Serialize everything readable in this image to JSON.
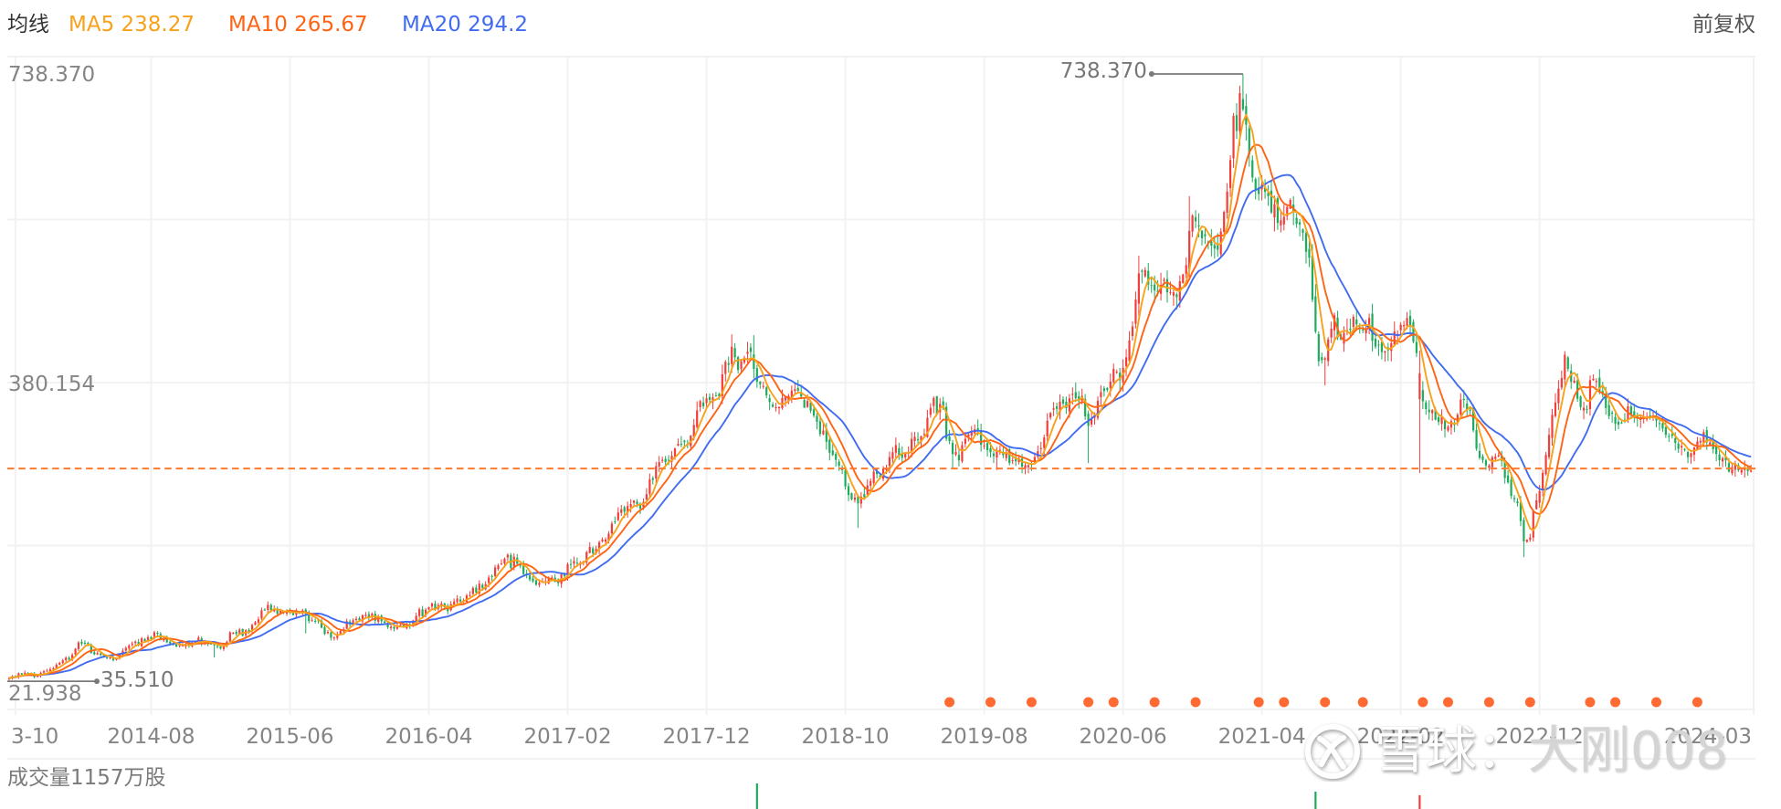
{
  "header": {
    "indicator_title": "均线",
    "adjust_mode": "前复权"
  },
  "watermark": {
    "logo_icon": "xueqiu-logo",
    "site": "雪球",
    "separator": "：",
    "author": "大刚008"
  },
  "chart_data": {
    "type": "candlestick",
    "title": "",
    "interval": "weekly",
    "adjustment": "前复权",
    "candle_count": 553,
    "ylim": [
      21.938,
      738.37
    ],
    "grid": true,
    "legend_position": "top-left",
    "y_axis": {
      "ticks": [
        {
          "label": "738.370",
          "value": 738.37
        },
        {
          "label": "380.154",
          "value": 380.154
        },
        {
          "label": "21.938",
          "value": 21.938
        }
      ]
    },
    "x_ticks": [
      {
        "label": "3-10",
        "index": 2
      },
      {
        "label": "2014-08",
        "index": 45
      },
      {
        "label": "2015-06",
        "index": 89
      },
      {
        "label": "2016-04",
        "index": 133
      },
      {
        "label": "2017-02",
        "index": 177
      },
      {
        "label": "2017-12",
        "index": 221
      },
      {
        "label": "2018-10",
        "index": 265
      },
      {
        "label": "2019-08",
        "index": 309
      },
      {
        "label": "2020-06",
        "index": 353
      },
      {
        "label": "2021-04",
        "index": 397
      },
      {
        "label": "2022-02",
        "index": 441
      },
      {
        "label": "2022-12",
        "index": 485
      },
      {
        "label": "2024-03",
        "index": 552
      }
    ],
    "ma_series": [
      {
        "name": "MA5",
        "period": 5,
        "value": "238.27",
        "color": "#F8A21C"
      },
      {
        "name": "MA10",
        "period": 10,
        "value": "265.67",
        "color": "#FF6414"
      },
      {
        "name": "MA20",
        "period": 20,
        "value": "294.2",
        "color": "#416CF0"
      }
    ],
    "colors": {
      "up": "#F23D3A",
      "down": "#1DAB5C",
      "grid": "#F2F2F2",
      "annotation": "#7A7A7A",
      "price_line": "#FF7A2C",
      "event_marker": "#FF6A33"
    },
    "max_marker": {
      "label": "738.370",
      "value": 738.37,
      "index": 391
    },
    "min_marker": {
      "label": "35.510",
      "value": 35.51,
      "index": 0
    },
    "price_line": {
      "value": 281.8,
      "style": "dashed"
    },
    "close_anchors": [
      [
        0,
        39.7
      ],
      [
        4,
        45.0
      ],
      [
        9,
        41.8
      ],
      [
        14,
        52.4
      ],
      [
        19,
        63.0
      ],
      [
        23,
        82.0
      ],
      [
        26,
        71.4
      ],
      [
        30,
        63.0
      ],
      [
        34,
        59.8
      ],
      [
        37,
        73.5
      ],
      [
        42,
        82.0
      ],
      [
        46,
        89.4
      ],
      [
        51,
        82.0
      ],
      [
        54,
        75.6
      ],
      [
        60,
        84.1
      ],
      [
        64,
        75.6
      ],
      [
        67,
        71.4
      ],
      [
        70,
        89.4
      ],
      [
        75,
        92.5
      ],
      [
        79,
        105.2
      ],
      [
        81,
        123.2
      ],
      [
        85,
        117.9
      ],
      [
        90,
        115.8
      ],
      [
        93,
        113.7
      ],
      [
        97,
        105.2
      ],
      [
        101,
        89.4
      ],
      [
        104,
        89.4
      ],
      [
        108,
        105.2
      ],
      [
        113,
        112.6
      ],
      [
        118,
        108.4
      ],
      [
        121,
        99.9
      ],
      [
        126,
        97.8
      ],
      [
        130,
        113.7
      ],
      [
        135,
        123.2
      ],
      [
        140,
        121.1
      ],
      [
        143,
        131.7
      ],
      [
        148,
        142.2
      ],
      [
        152,
        152.8
      ],
      [
        155,
        172.0
      ],
      [
        158,
        176.1
      ],
      [
        161,
        170.8
      ],
      [
        165,
        158.1
      ],
      [
        170,
        147.0
      ],
      [
        174,
        155.5
      ],
      [
        177,
        165.5
      ],
      [
        181,
        174.0
      ],
      [
        185,
        186.6
      ],
      [
        189,
        200.4
      ],
      [
        191,
        218.3
      ],
      [
        194,
        235.3
      ],
      [
        197,
        239.5
      ],
      [
        200,
        239.5
      ],
      [
        202,
        256.4
      ],
      [
        204,
        274.4
      ],
      [
        206,
        288.1
      ],
      [
        208,
        290.2
      ],
      [
        210,
        298.7
      ],
      [
        212,
        306.1
      ],
      [
        214,
        311.4
      ],
      [
        216,
        319.8
      ],
      [
        218,
        345.2
      ],
      [
        219,
        362.1
      ],
      [
        221,
        358.9
      ],
      [
        223,
        369.5
      ],
      [
        225,
        362.1
      ],
      [
        226,
        383.2
      ],
      [
        227,
        404.4
      ],
      [
        229,
        414.9
      ],
      [
        231,
        393.8
      ],
      [
        232,
        404.4
      ],
      [
        234,
        408.6
      ],
      [
        235,
        414.9
      ],
      [
        237,
        390.6
      ],
      [
        239,
        369.5
      ],
      [
        241,
        362.1
      ],
      [
        243,
        358.9
      ],
      [
        245,
        362.1
      ],
      [
        247,
        372.7
      ],
      [
        249,
        369.5
      ],
      [
        252,
        358.9
      ],
      [
        254,
        348.4
      ],
      [
        256,
        337.8
      ],
      [
        258,
        319.8
      ],
      [
        259,
        309.2
      ],
      [
        261,
        295.5
      ],
      [
        263,
        288.1
      ],
      [
        264,
        274.4
      ],
      [
        266,
        253.2
      ],
      [
        267,
        245.8
      ],
      [
        269,
        245.8
      ],
      [
        271,
        250.0
      ],
      [
        272,
        266.9
      ],
      [
        274,
        274.4
      ],
      [
        275,
        271.2
      ],
      [
        277,
        277.5
      ],
      [
        279,
        292.3
      ],
      [
        281,
        302.9
      ],
      [
        283,
        298.7
      ],
      [
        285,
        304.0
      ],
      [
        287,
        316.6
      ],
      [
        290,
        327.2
      ],
      [
        291,
        337.8
      ],
      [
        293,
        355.7
      ],
      [
        294,
        351.5
      ],
      [
        296,
        348.4
      ],
      [
        297,
        319.8
      ],
      [
        299,
        298.7
      ],
      [
        301,
        295.5
      ],
      [
        303,
        313.5
      ],
      [
        305,
        324.0
      ],
      [
        307,
        324.0
      ],
      [
        309,
        306.1
      ],
      [
        311,
        302.9
      ],
      [
        313,
        298.7
      ],
      [
        315,
        295.5
      ],
      [
        318,
        292.3
      ],
      [
        320,
        288.1
      ],
      [
        322,
        287.0
      ],
      [
        324,
        288.1
      ],
      [
        326,
        295.5
      ],
      [
        328,
        319.8
      ],
      [
        329,
        341.0
      ],
      [
        331,
        348.4
      ],
      [
        333,
        358.9
      ],
      [
        335,
        351.5
      ],
      [
        337,
        369.5
      ],
      [
        338,
        358.9
      ],
      [
        340,
        362.1
      ],
      [
        341,
        337.8
      ],
      [
        342,
        334.6
      ],
      [
        344,
        345.2
      ],
      [
        346,
        366.3
      ],
      [
        348,
        376.9
      ],
      [
        350,
        393.8
      ],
      [
        352,
        387.5
      ],
      [
        354,
        408.6
      ],
      [
        356,
        443.5
      ],
      [
        357,
        478.4
      ],
      [
        358,
        514.3
      ],
      [
        360,
        506.9
      ],
      [
        362,
        493.2
      ],
      [
        364,
        485.8
      ],
      [
        366,
        499.5
      ],
      [
        368,
        482.6
      ],
      [
        370,
        478.4
      ],
      [
        371,
        493.2
      ],
      [
        373,
        520.7
      ],
      [
        374,
        562.9
      ],
      [
        376,
        570.3
      ],
      [
        377,
        556.6
      ],
      [
        379,
        549.2
      ],
      [
        381,
        541.8
      ],
      [
        383,
        528.0
      ],
      [
        384,
        549.2
      ],
      [
        386,
        594.6
      ],
      [
        387,
        644.3
      ],
      [
        388,
        697.2
      ],
      [
        389,
        680.0
      ],
      [
        390,
        720.0
      ],
      [
        391,
        700.0
      ],
      [
        392,
        680.0
      ],
      [
        393,
        645.0
      ],
      [
        394,
        612.7
      ],
      [
        396,
        591.5
      ],
      [
        397,
        602.0
      ],
      [
        399,
        594.6
      ],
      [
        400,
        584.1
      ],
      [
        401,
        580.9
      ],
      [
        403,
        562.9
      ],
      [
        404,
        567.2
      ],
      [
        406,
        594.6
      ],
      [
        407,
        570.3
      ],
      [
        409,
        556.6
      ],
      [
        410,
        549.2
      ],
      [
        412,
        520.7
      ],
      [
        413,
        478.4
      ],
      [
        414,
        443.5
      ],
      [
        415,
        408.6
      ],
      [
        417,
        408.6
      ],
      [
        418,
        432.9
      ],
      [
        420,
        454.0
      ],
      [
        421,
        432.9
      ],
      [
        423,
        436.1
      ],
      [
        425,
        443.5
      ],
      [
        426,
        457.2
      ],
      [
        427,
        450.5
      ],
      [
        429,
        443.5
      ],
      [
        431,
        450.5
      ],
      [
        432,
        432.9
      ],
      [
        433,
        422.3
      ],
      [
        435,
        419.2
      ],
      [
        437,
        422.3
      ],
      [
        438,
        429.7
      ],
      [
        440,
        443.5
      ],
      [
        442,
        450.9
      ],
      [
        443,
        454.0
      ],
      [
        445,
        430.0
      ],
      [
        446,
        410.0
      ],
      [
        447,
        372.7
      ],
      [
        448,
        358.9
      ],
      [
        450,
        351.5
      ],
      [
        451,
        345.2
      ],
      [
        452,
        337.8
      ],
      [
        454,
        341.0
      ],
      [
        455,
        330.4
      ],
      [
        457,
        334.6
      ],
      [
        458,
        337.8
      ],
      [
        460,
        358.9
      ],
      [
        461,
        358.9
      ],
      [
        463,
        348.4
      ],
      [
        464,
        327.2
      ],
      [
        465,
        306.1
      ],
      [
        467,
        288.1
      ],
      [
        468,
        281.7
      ],
      [
        470,
        295.5
      ],
      [
        471,
        298.7
      ],
      [
        473,
        288.1
      ],
      [
        474,
        271.2
      ],
      [
        476,
        253.2
      ],
      [
        478,
        239.5
      ],
      [
        479,
        218.3
      ],
      [
        480,
        197.2
      ],
      [
        482,
        203.5
      ],
      [
        483,
        232.1
      ],
      [
        485,
        253.2
      ],
      [
        486,
        277.5
      ],
      [
        487,
        295.5
      ],
      [
        488,
        319.8
      ],
      [
        489,
        345.2
      ],
      [
        491,
        372.7
      ],
      [
        493,
        408.6
      ],
      [
        494,
        393.8
      ],
      [
        496,
        380.1
      ],
      [
        497,
        366.3
      ],
      [
        498,
        351.5
      ],
      [
        500,
        348.4
      ],
      [
        501,
        383.2
      ],
      [
        503,
        380.1
      ],
      [
        504,
        372.7
      ],
      [
        506,
        355.7
      ],
      [
        507,
        345.2
      ],
      [
        509,
        337.8
      ],
      [
        510,
        330.4
      ],
      [
        512,
        337.8
      ],
      [
        513,
        351.5
      ],
      [
        515,
        341.0
      ],
      [
        516,
        337.8
      ],
      [
        518,
        345.2
      ],
      [
        519,
        337.8
      ],
      [
        521,
        345.2
      ],
      [
        522,
        337.8
      ],
      [
        524,
        327.2
      ],
      [
        525,
        324.0
      ],
      [
        527,
        319.8
      ],
      [
        528,
        309.2
      ],
      [
        529,
        306.1
      ],
      [
        531,
        302.9
      ],
      [
        532,
        298.7
      ],
      [
        534,
        302.9
      ],
      [
        535,
        309.2
      ],
      [
        537,
        324.0
      ],
      [
        538,
        313.5
      ],
      [
        539,
        309.2
      ],
      [
        541,
        298.7
      ],
      [
        542,
        292.3
      ],
      [
        544,
        288.1
      ],
      [
        545,
        281.7
      ],
      [
        547,
        284.9
      ],
      [
        548,
        281.7
      ],
      [
        550,
        282.8
      ],
      [
        551,
        277.5
      ],
      [
        552,
        281.7
      ]
    ],
    "candle_overrides": [
      {
        "i": 65,
        "low": 63
      },
      {
        "i": 94,
        "low": 91
      },
      {
        "i": 229,
        "high": 437
      },
      {
        "i": 236,
        "high": 436
      },
      {
        "i": 269,
        "low": 213
      },
      {
        "i": 299,
        "low": 282
      },
      {
        "i": 313,
        "low": 280
      },
      {
        "i": 342,
        "low": 288
      },
      {
        "i": 358,
        "high": 528
      },
      {
        "i": 374,
        "high": 597
      },
      {
        "i": 417,
        "low": 378
      },
      {
        "i": 447,
        "open": 362,
        "close": 392,
        "high": 400,
        "low": 276.5
      },
      {
        "i": 480,
        "low": 179.2
      },
      {
        "i": 493,
        "high": 416
      }
    ],
    "noise": {
      "seed": 7919,
      "segments": [
        {
          "from": 0,
          "to": 186,
          "close_pct": 0.045
        },
        {
          "from": 186,
          "to": 328,
          "close_pct": 0.022
        },
        {
          "from": 328,
          "to": 553,
          "close_pct": 0.014
        }
      ],
      "gap_pct": 0.012,
      "wick_pct": 0.028,
      "wick_abs": 1.5
    },
    "event_markers": [
      298,
      311,
      324,
      342,
      350,
      363,
      376,
      396,
      404,
      417,
      429,
      448,
      456,
      469,
      482,
      501,
      509,
      522,
      535
    ],
    "volume": {
      "label": "成交量1157万股",
      "value": 1157,
      "unit": "万股",
      "visible_bars": [
        {
          "index": 237,
          "dir": "down",
          "rel": 1.0
        },
        {
          "index": 414,
          "dir": "down",
          "rel": 0.68
        },
        {
          "index": 447,
          "dir": "up",
          "rel": 0.54
        }
      ]
    }
  }
}
